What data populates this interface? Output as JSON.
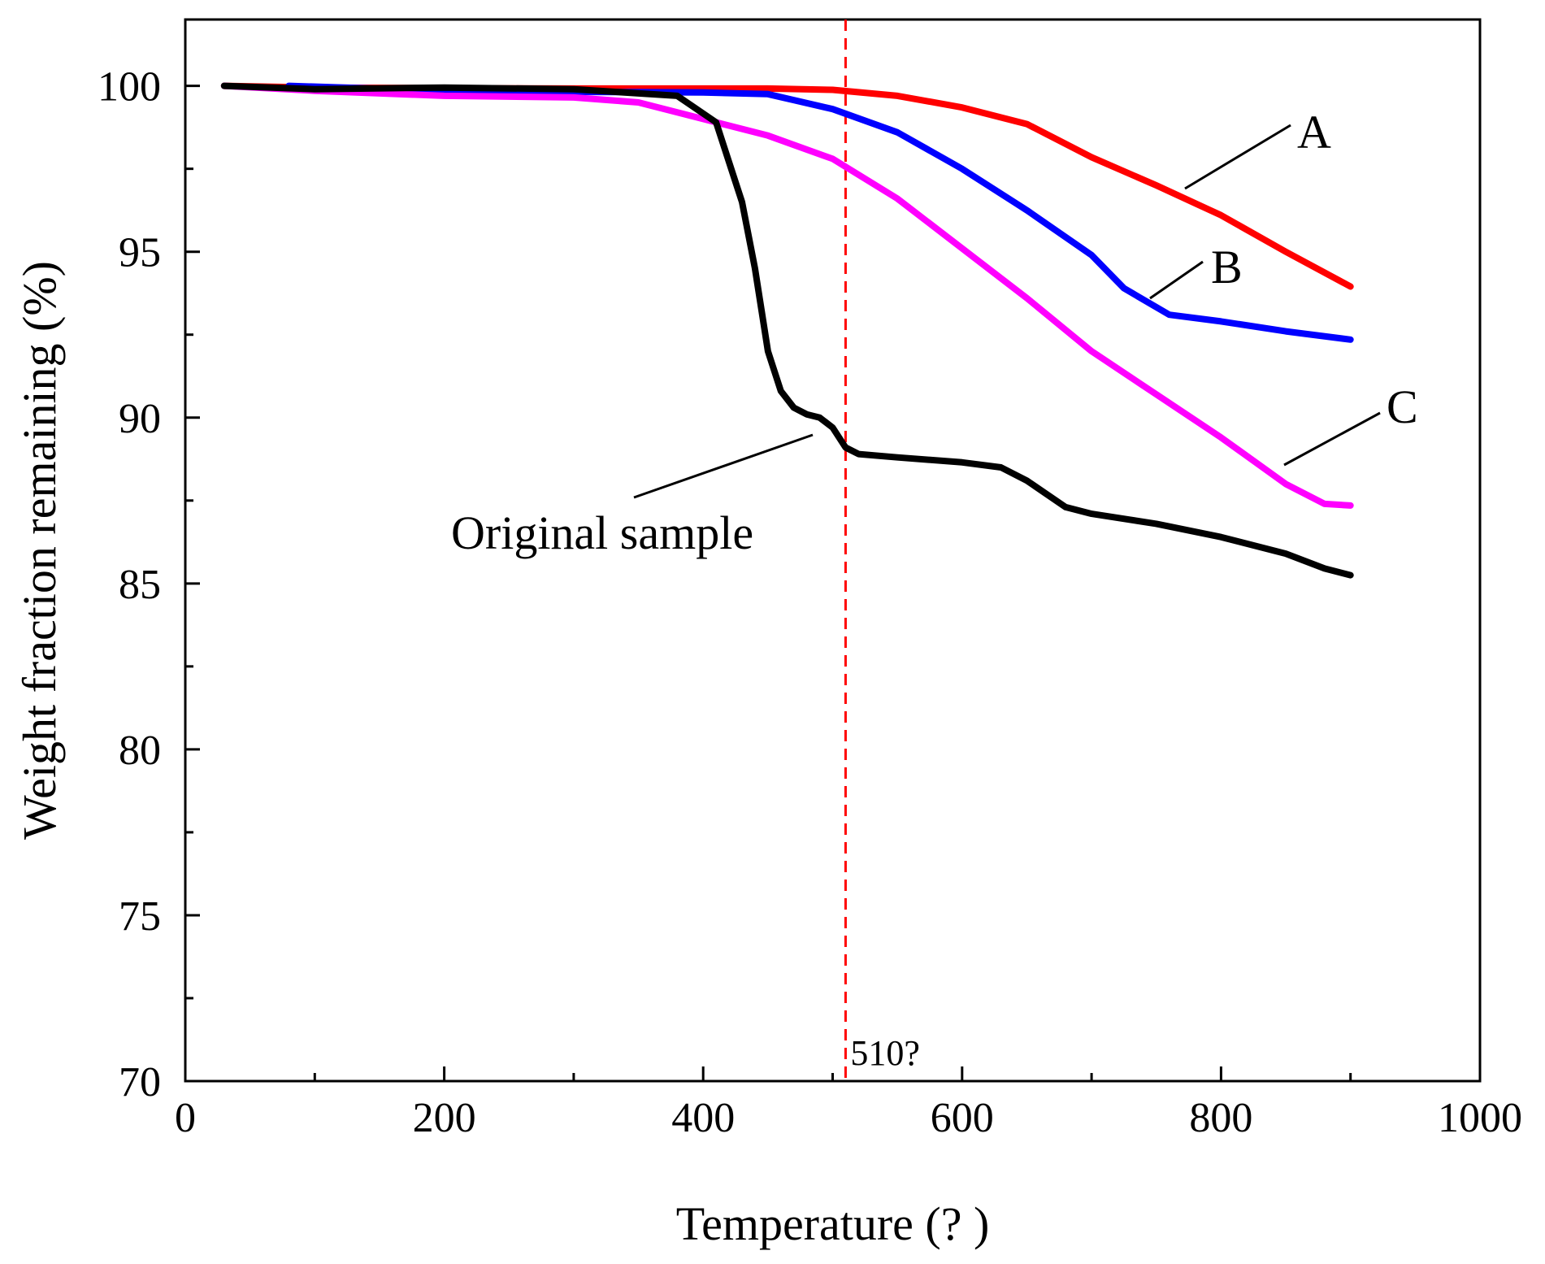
{
  "chart_data": {
    "type": "line",
    "title": "",
    "xlabel": "Temperature (?  )",
    "ylabel": "Weight fraction remaining (%)",
    "xlim": [
      0,
      1000
    ],
    "ylim": [
      70,
      102
    ],
    "xticks": [
      0,
      200,
      400,
      600,
      800,
      1000
    ],
    "yticks": [
      70,
      75,
      80,
      85,
      90,
      95,
      100
    ],
    "vline": {
      "x": 510,
      "label": "510?",
      "color": "#ff0000",
      "style": "dashed"
    },
    "series": [
      {
        "name": "A",
        "color": "#ff0000",
        "x": [
          30,
          100,
          200,
          300,
          400,
          450,
          500,
          550,
          600,
          650,
          700,
          750,
          800,
          850,
          900
        ],
        "y": [
          100.0,
          99.95,
          99.93,
          99.92,
          99.92,
          99.92,
          99.88,
          99.7,
          99.35,
          98.85,
          97.85,
          97.0,
          96.1,
          95.0,
          93.95
        ]
      },
      {
        "name": "B",
        "color": "#0000ff",
        "x": [
          80,
          200,
          300,
          400,
          450,
          500,
          550,
          600,
          650,
          700,
          725,
          760,
          800,
          850,
          900
        ],
        "y": [
          100.0,
          99.85,
          99.82,
          99.8,
          99.75,
          99.3,
          98.6,
          97.5,
          96.25,
          94.9,
          93.9,
          93.1,
          92.9,
          92.6,
          92.35
        ]
      },
      {
        "name": "C",
        "color": "#ff00ff",
        "x": [
          30,
          100,
          200,
          300,
          350,
          400,
          450,
          500,
          550,
          600,
          650,
          700,
          750,
          800,
          850,
          880,
          900
        ],
        "y": [
          100.0,
          99.85,
          99.7,
          99.65,
          99.5,
          99.0,
          98.5,
          97.8,
          96.6,
          95.1,
          93.6,
          92.0,
          90.7,
          89.4,
          88.0,
          87.4,
          87.35
        ]
      },
      {
        "name": "Original sample",
        "color": "#000000",
        "x": [
          30,
          100,
          200,
          300,
          380,
          410,
          430,
          440,
          450,
          460,
          470,
          480,
          490,
          500,
          510,
          520,
          550,
          600,
          630,
          650,
          680,
          700,
          750,
          800,
          850,
          880,
          900
        ],
        "y": [
          100.0,
          99.9,
          99.95,
          99.9,
          99.7,
          98.9,
          96.5,
          94.5,
          92.0,
          90.8,
          90.3,
          90.1,
          90.0,
          89.7,
          89.1,
          88.9,
          88.8,
          88.65,
          88.5,
          88.1,
          87.3,
          87.1,
          86.8,
          86.4,
          85.9,
          85.45,
          85.25
        ]
      }
    ],
    "annotations": [
      {
        "text": "A",
        "series": "A"
      },
      {
        "text": "B",
        "series": "B"
      },
      {
        "text": "C",
        "series": "C"
      },
      {
        "text": "Original sample",
        "series": "Original sample"
      }
    ]
  }
}
